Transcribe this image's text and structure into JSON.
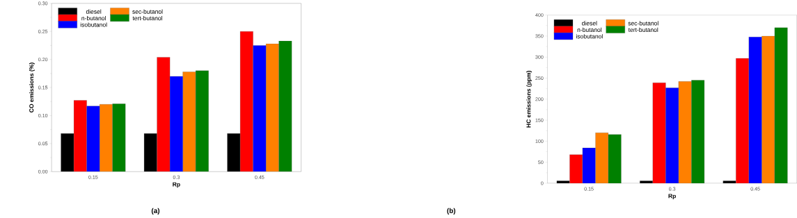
{
  "chart_data": [
    {
      "type": "bar",
      "xlabel": "Rp",
      "ylabel": "CO emissions (%)",
      "annotations": [
        "(a)"
      ],
      "legend": "top left",
      "categories": [
        "0.15",
        "0.3",
        "0.45"
      ],
      "ylim": [
        0,
        0.3
      ],
      "yticks": [
        {
          "value": 0,
          "label": "0.00"
        },
        {
          "value": 0.05,
          "label": "0.05"
        },
        {
          "value": 0.1,
          "label": "0.10"
        },
        {
          "value": 0.15,
          "label": "0.15"
        },
        {
          "value": 0.2,
          "label": "0.20"
        },
        {
          "value": 0.25,
          "label": "0.25"
        },
        {
          "value": 0.3,
          "label": "0.30"
        }
      ],
      "series": [
        {
          "name": "diesel",
          "color": "#000000",
          "values": [
            0.068,
            0.068,
            0.068
          ]
        },
        {
          "name": "n-butanol",
          "color": "#ff0000",
          "values": [
            0.127,
            0.204,
            0.25
          ]
        },
        {
          "name": "isobutanol",
          "color": "#0000ff",
          "values": [
            0.117,
            0.17,
            0.225
          ]
        },
        {
          "name": "sec-butanol",
          "color": "#ff8000",
          "values": [
            0.12,
            0.178,
            0.228
          ]
        },
        {
          "name": "tert-butanol",
          "color": "#008000",
          "values": [
            0.121,
            0.18,
            0.233
          ]
        }
      ]
    },
    {
      "type": "bar",
      "xlabel": "Rp",
      "ylabel": "HC emissions (ppm)",
      "annotations": [
        "(b)"
      ],
      "legend": "top left",
      "categories": [
        "0.15",
        "0.3",
        "0.45"
      ],
      "ylim": [
        0,
        400
      ],
      "yticks": [
        0,
        50,
        100,
        150,
        200,
        250,
        300,
        350,
        400
      ],
      "series": [
        {
          "name": "diesel",
          "color": "#000000",
          "values": [
            6,
            6,
            6
          ]
        },
        {
          "name": "n-butanol",
          "color": "#ff0000",
          "values": [
            68,
            239,
            297
          ]
        },
        {
          "name": "isobutanol",
          "color": "#0000ff",
          "values": [
            84,
            227,
            348
          ]
        },
        {
          "name": "sec-butanol",
          "color": "#ff8000",
          "values": [
            120,
            242,
            350
          ]
        },
        {
          "name": "tert-butanol",
          "color": "#008000",
          "values": [
            116,
            245,
            370
          ]
        }
      ]
    }
  ]
}
